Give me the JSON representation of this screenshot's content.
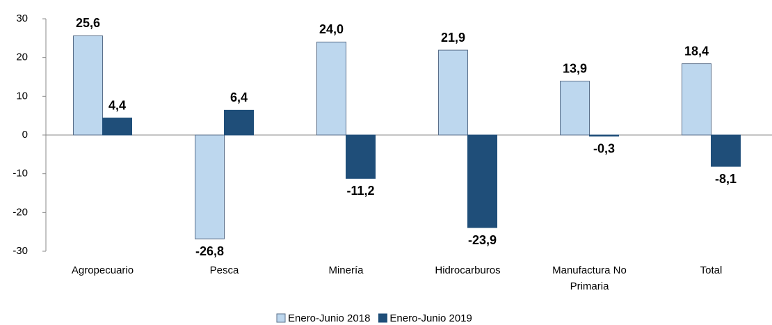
{
  "chart_data": {
    "type": "bar",
    "categories": [
      "Agropecuario",
      "Pesca",
      "Minería",
      "Hidrocarburos",
      "Manufactura No Primaria",
      "Total"
    ],
    "series": [
      {
        "name": "Enero-Junio 2018",
        "color": "#bdd7ee",
        "values": [
          25.6,
          -26.8,
          24.0,
          21.9,
          13.9,
          18.4
        ],
        "value_labels": [
          "25,6",
          "-26,8",
          "24,0",
          "21,9",
          "13,9",
          "18,4"
        ]
      },
      {
        "name": "Enero-Junio 2019",
        "color": "#1f4e79",
        "values": [
          4.4,
          6.4,
          -11.2,
          -23.9,
          -0.3,
          -8.1
        ],
        "value_labels": [
          "4,4",
          "6,4",
          "-11,2",
          "-23,9",
          "-0,3",
          "-8,1"
        ]
      }
    ],
    "ylim": [
      -30,
      30
    ],
    "yticks": [
      -30,
      -20,
      -10,
      0,
      10,
      20,
      30
    ],
    "legend": "bottom"
  }
}
